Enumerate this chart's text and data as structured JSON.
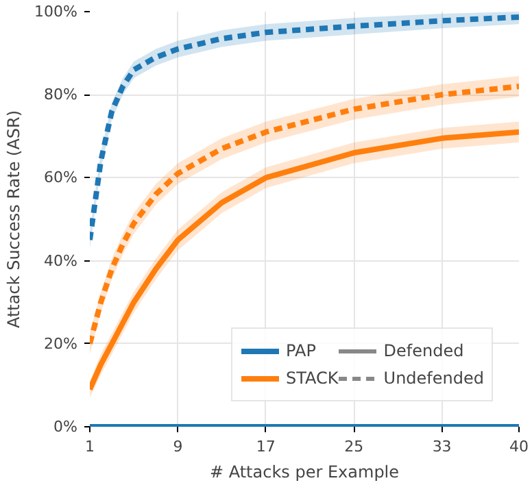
{
  "chart_data": {
    "type": "line",
    "xlabel": "# Attacks per Example",
    "ylabel": "Attack Success Rate (ASR)",
    "xlim": [
      1,
      40
    ],
    "xticks": [
      1,
      9,
      17,
      25,
      33,
      40
    ],
    "ylim": [
      0,
      100
    ],
    "yticks": [
      {
        "value": 0,
        "label": "0%"
      },
      {
        "value": 20,
        "label": "20%"
      },
      {
        "value": 40,
        "label": "40%"
      },
      {
        "value": 60,
        "label": "60%"
      },
      {
        "value": 80,
        "label": "80%"
      },
      {
        "value": 100,
        "label": "100%"
      }
    ],
    "grid": true,
    "legend": "bottom right",
    "marker": "none",
    "annotations": [
      "Defended",
      "Undefended"
    ],
    "series": [
      {
        "name": "PAP",
        "color": "#1f77b4",
        "line_style": "solid",
        "x": [
          1,
          40
        ],
        "values": [
          0,
          0
        ]
      },
      {
        "name": "STACK",
        "color": "#ff7f0e",
        "line_style": "solid",
        "x": [
          1,
          2,
          3,
          4,
          5,
          7,
          9,
          13,
          17,
          25,
          33,
          40
        ],
        "values": [
          9,
          15,
          20,
          25,
          30,
          38,
          45,
          54,
          60,
          66,
          69.5,
          71
        ],
        "lower": [
          7,
          12.5,
          17.5,
          22.5,
          27.5,
          35.5,
          42.5,
          51.5,
          57.5,
          63.5,
          67,
          68.5
        ],
        "upper": [
          11,
          17.5,
          22.5,
          27.5,
          32.5,
          40.5,
          47.5,
          56.5,
          62.5,
          68.5,
          72,
          73.5
        ]
      },
      {
        "color": "#1f77b4",
        "line_style": "dashed",
        "x": [
          1,
          2,
          3,
          4,
          5,
          7,
          9,
          13,
          17,
          25,
          33,
          40
        ],
        "values": [
          45,
          64,
          76,
          82,
          86,
          89,
          91,
          93.5,
          95,
          96.5,
          97.8,
          98.7
        ],
        "lower": [
          43,
          62,
          74,
          80,
          84,
          87,
          89,
          91.5,
          93,
          94.5,
          96,
          97
        ],
        "upper": [
          47,
          66,
          78,
          84,
          88,
          91,
          93,
          95.5,
          97,
          98.5,
          99.5,
          100
        ]
      },
      {
        "color": "#ff7f0e",
        "line_style": "dashed",
        "x": [
          1,
          2,
          3,
          4,
          5,
          7,
          9,
          13,
          17,
          25,
          33,
          40
        ],
        "values": [
          20,
          30,
          38,
          44,
          49,
          56,
          61,
          67,
          71,
          76.5,
          80,
          82
        ],
        "lower": [
          17.5,
          27.5,
          35.5,
          41.5,
          46.5,
          53.5,
          58.5,
          64.5,
          68.5,
          74,
          77.5,
          79.5
        ],
        "upper": [
          22.5,
          32.5,
          40.5,
          46.5,
          51.5,
          58.5,
          63.5,
          69.5,
          73.5,
          79,
          82.5,
          84.5
        ]
      }
    ]
  }
}
